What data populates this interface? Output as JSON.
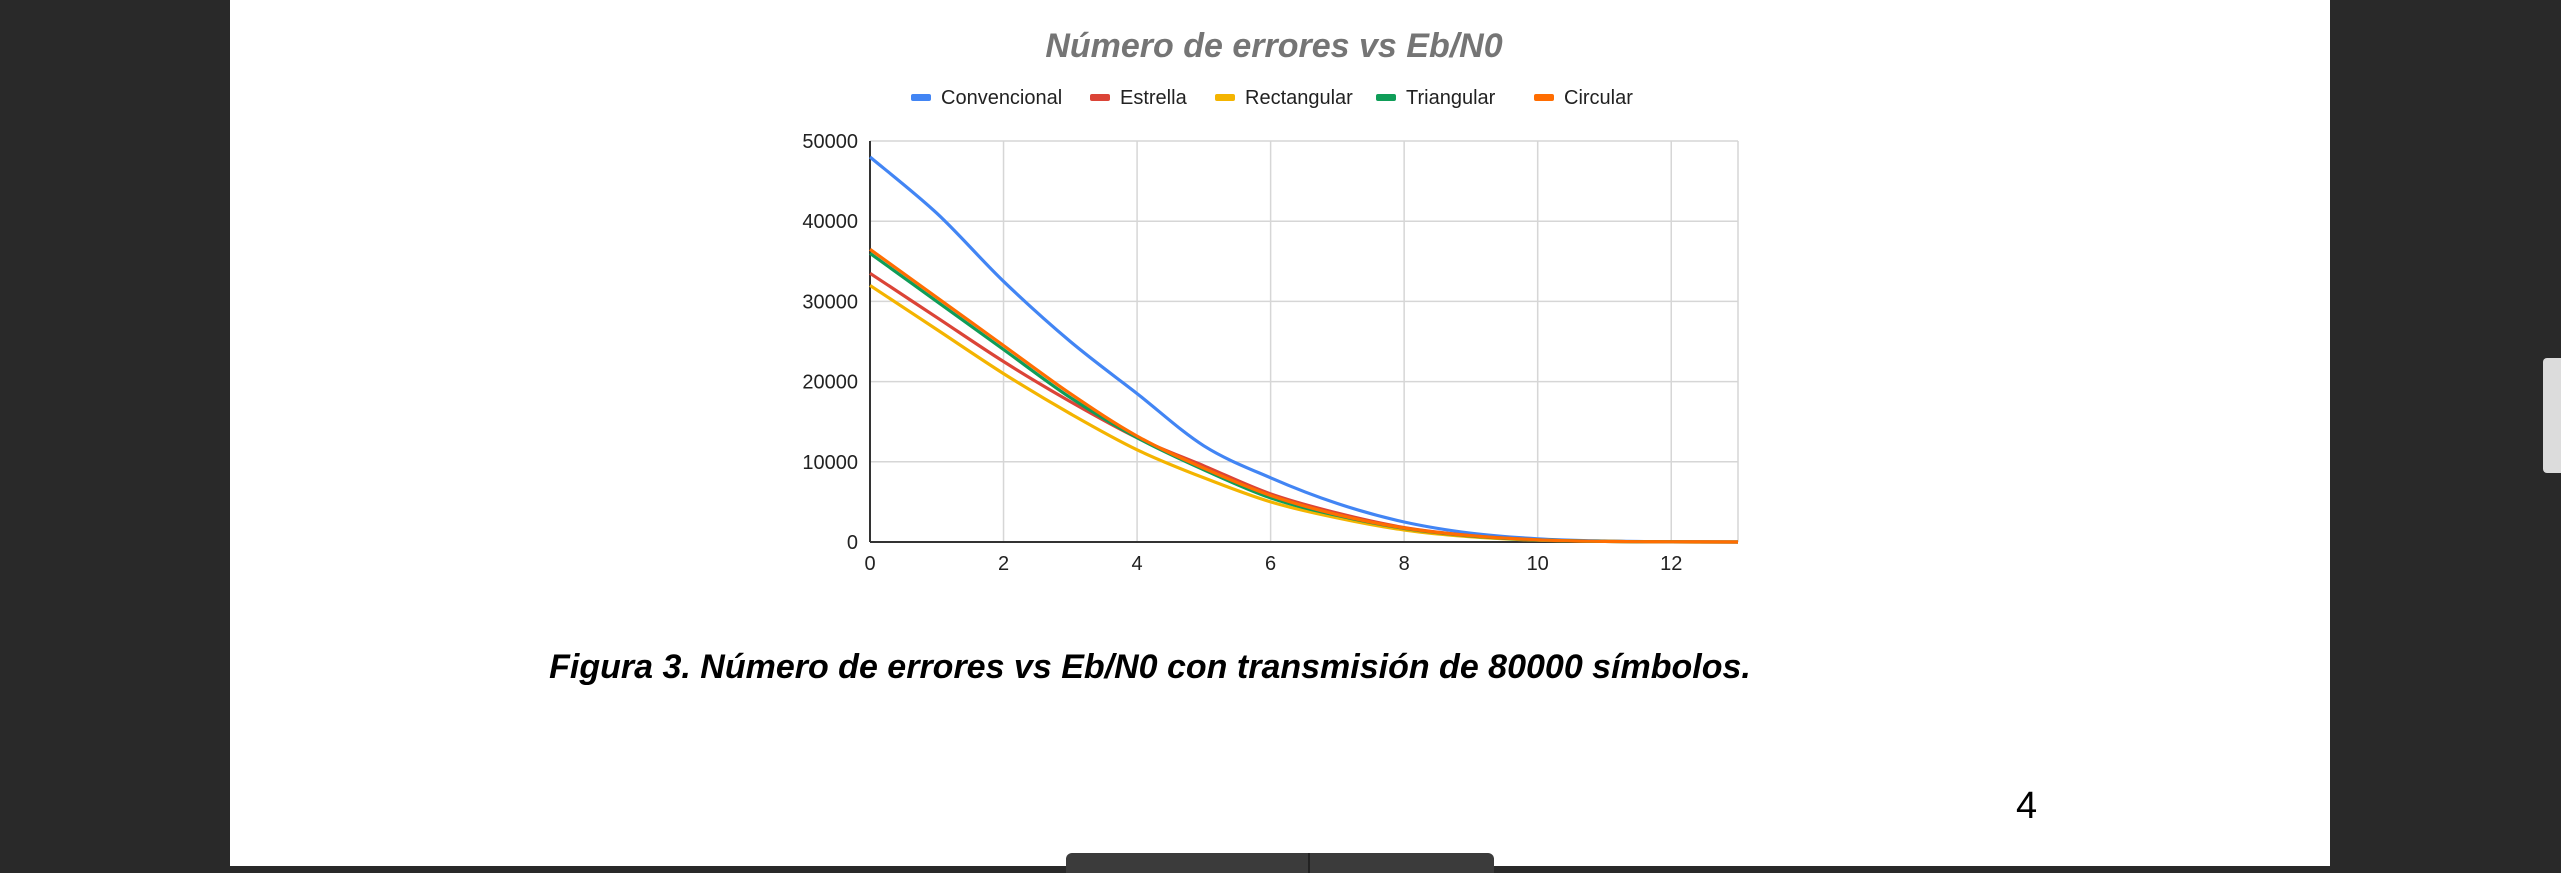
{
  "chart_data": {
    "type": "line",
    "title": "Número de errores vs Eb/N0",
    "xlabel": "",
    "ylabel": "",
    "xlim": [
      0,
      13
    ],
    "ylim": [
      0,
      50000
    ],
    "x_ticks": [
      "0",
      "2",
      "4",
      "6",
      "8",
      "10",
      "12"
    ],
    "y_ticks": [
      "0",
      "10000",
      "20000",
      "30000",
      "40000",
      "50000"
    ],
    "grid": true,
    "legend_position": "top",
    "x": [
      0,
      1,
      2,
      3,
      4,
      5,
      6,
      7,
      8,
      9,
      10,
      11,
      12,
      13
    ],
    "series": [
      {
        "name": "Convencional",
        "color": "#4285F4",
        "values": [
          48000,
          41000,
          32500,
          25000,
          18500,
          12000,
          8000,
          4800,
          2500,
          1100,
          400,
          120,
          30,
          5
        ]
      },
      {
        "name": "Estrella",
        "color": "#DB4437",
        "values": [
          33500,
          28000,
          22500,
          17500,
          13000,
          9500,
          6000,
          3600,
          1800,
          800,
          280,
          80,
          20,
          3
        ]
      },
      {
        "name": "Rectangular",
        "color": "#F4B400",
        "values": [
          32000,
          26500,
          21000,
          16000,
          11500,
          8000,
          5000,
          3000,
          1500,
          650,
          230,
          70,
          15,
          3
        ]
      },
      {
        "name": "Triangular",
        "color": "#0F9D58",
        "values": [
          36000,
          30000,
          24000,
          18000,
          13000,
          9000,
          5500,
          3300,
          1700,
          750,
          260,
          75,
          18,
          3
        ]
      },
      {
        "name": "Circular",
        "color": "#FF6D01",
        "values": [
          36500,
          30500,
          24500,
          18500,
          13200,
          9200,
          5800,
          3400,
          1750,
          780,
          270,
          78,
          19,
          3
        ]
      }
    ]
  },
  "caption": "Figura 3. Número de errores vs Eb/N0 con transmisión de 80000 símbolos.",
  "page_number": "4"
}
